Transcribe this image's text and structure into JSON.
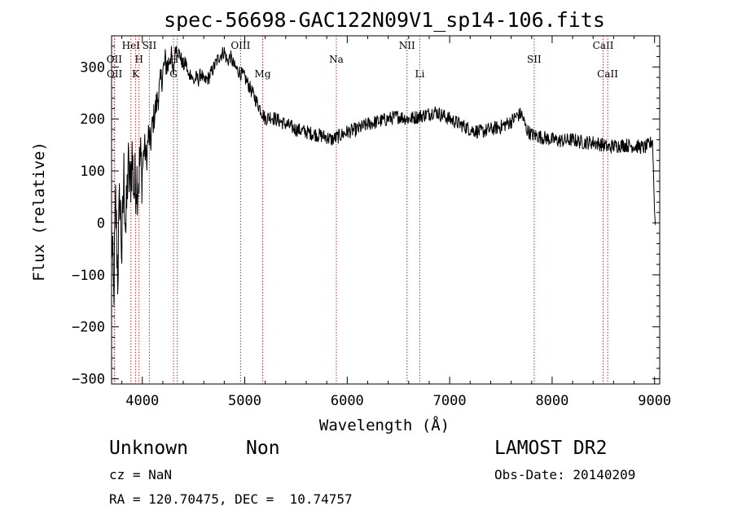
{
  "chart_data": {
    "type": "line",
    "title": "spec-56698-GAC122N09V1_sp14-106.fits",
    "xlabel": "Wavelength (Å)",
    "ylabel": "Flux (relative)",
    "xlim": [
      3700,
      9050
    ],
    "ylim": [
      -310,
      360
    ],
    "xticks": [
      4000,
      5000,
      6000,
      7000,
      8000,
      9000
    ],
    "xtick_labels": [
      "4000",
      "5000",
      "6000",
      "7000",
      "8000",
      "9000"
    ],
    "yticks": [
      -300,
      -200,
      -100,
      0,
      100,
      200,
      300
    ],
    "ytick_labels": [
      "−300",
      "−200",
      "−100",
      "0",
      "100",
      "200",
      "300"
    ],
    "grid": false,
    "line_color": "#000000",
    "marker_color": "#b03030",
    "series": [
      {
        "x": [
          3700,
          3720,
          3740,
          3760,
          3780,
          3800,
          3820,
          3840,
          3860,
          3880,
          3900,
          3920,
          3940,
          3960,
          3980,
          4000,
          4020,
          4040,
          4060,
          4080,
          4100,
          4120,
          4140,
          4160,
          4180,
          4200,
          4225,
          4250,
          4275,
          4300,
          4325,
          4350,
          4375,
          4400,
          4425,
          4450,
          4475,
          4500,
          4525,
          4550,
          4575,
          4600,
          4650,
          4700,
          4750,
          4800,
          4830,
          4860,
          4900,
          4950,
          5000,
          5050,
          5100,
          5150,
          5200,
          5250,
          5300,
          5400,
          5500,
          5600,
          5700,
          5800,
          5850,
          5900,
          5950,
          6000,
          6100,
          6200,
          6300,
          6400,
          6500,
          6600,
          6700,
          6800,
          6850,
          6900,
          6950,
          7000,
          7100,
          7200,
          7300,
          7400,
          7500,
          7600,
          7650,
          7700,
          7750,
          7800,
          7900,
          8000,
          8100,
          8200,
          8300,
          8400,
          8500,
          8550,
          8600,
          8700,
          8800,
          8900,
          8950,
          8980,
          9000,
          9010
        ],
        "y": [
          -10,
          -150,
          40,
          -100,
          60,
          -60,
          90,
          -20,
          110,
          70,
          130,
          60,
          90,
          80,
          120,
          100,
          150,
          120,
          170,
          150,
          190,
          210,
          230,
          250,
          270,
          290,
          310,
          300,
          330,
          280,
          340,
          330,
          320,
          300,
          310,
          280,
          290,
          270,
          280,
          275,
          290,
          270,
          280,
          300,
          320,
          330,
          310,
          320,
          300,
          290,
          280,
          260,
          240,
          220,
          200,
          205,
          200,
          190,
          180,
          175,
          170,
          165,
          160,
          165,
          170,
          175,
          180,
          190,
          195,
          200,
          205,
          200,
          205,
          210,
          215,
          210,
          205,
          200,
          190,
          180,
          175,
          180,
          185,
          195,
          205,
          210,
          180,
          170,
          165,
          160,
          158,
          160,
          155,
          155,
          150,
          145,
          148,
          150,
          148,
          145,
          150,
          160,
          20,
          -10
        ]
      }
    ],
    "line_markers": [
      {
        "label": "OII",
        "wavelength": 3727,
        "row": 1
      },
      {
        "label": "OII",
        "wavelength": 3729,
        "row": 2
      },
      {
        "label": "HeI",
        "wavelength": 3889,
        "row": 0
      },
      {
        "label": "SII",
        "wavelength": 4069,
        "row": 0
      },
      {
        "label": "H",
        "wavelength": 3968,
        "row": 1
      },
      {
        "label": "K",
        "wavelength": 3934,
        "row": 2
      },
      {
        "label": "Hγ",
        "wavelength": 4341,
        "row": 1
      },
      {
        "label": "G",
        "wavelength": 4305,
        "row": 2
      },
      {
        "label": "OIII",
        "wavelength": 4959,
        "row": 0
      },
      {
        "label": "Mg",
        "wavelength": 5175,
        "row": 2
      },
      {
        "label": "Na",
        "wavelength": 5894,
        "row": 1
      },
      {
        "label": "NII",
        "wavelength": 6584,
        "row": 0
      },
      {
        "label": "Li",
        "wavelength": 6708,
        "row": 2
      },
      {
        "label": "SII",
        "wavelength": 7825,
        "row": 1
      },
      {
        "label": "CaII",
        "wavelength": 8498,
        "row": 0
      },
      {
        "label": "CaII",
        "wavelength": 8542,
        "row": 2
      }
    ]
  },
  "info": {
    "class": "Unknown",
    "subclass": "Non",
    "survey": "LAMOST DR2",
    "redshift": "cz = NaN",
    "obs_date": "Obs-Date: 20140209",
    "coords": "RA = 120.70475, DEC =  10.74757"
  }
}
